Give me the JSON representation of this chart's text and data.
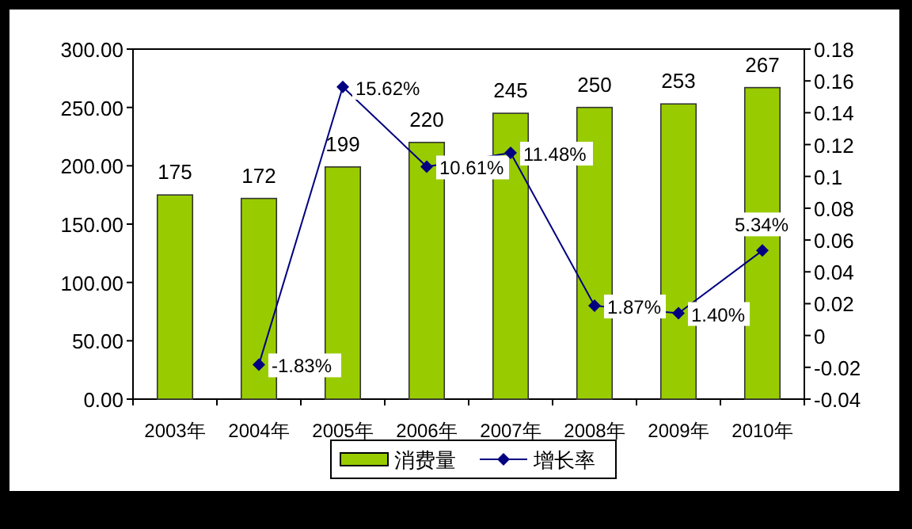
{
  "chart_data": {
    "type": "bar",
    "categories": [
      "2003年",
      "2004年",
      "2005年",
      "2006年",
      "2007年",
      "2008年",
      "2009年",
      "2010年"
    ],
    "series": [
      {
        "name": "消费量",
        "type": "bar",
        "color": "#99cc00",
        "values": [
          175,
          172,
          199,
          220,
          245,
          250,
          253,
          267
        ]
      },
      {
        "name": "增长率",
        "type": "line",
        "axis": "y2",
        "color": "#000080",
        "marker": "diamond",
        "values": [
          null,
          -0.0183,
          0.1562,
          0.1061,
          0.1148,
          0.0187,
          0.014,
          0.0534
        ],
        "value_labels": [
          null,
          "-1.83%",
          "15.62%",
          "10.61%",
          "11.48%",
          "1.87%",
          "1.40%",
          "5.34%"
        ]
      }
    ],
    "data_labels": true,
    "ylim": [
      0,
      300
    ],
    "yticks": [
      {
        "value": 0,
        "label": "0.00"
      },
      {
        "value": 50,
        "label": "50.00"
      },
      {
        "value": 100,
        "label": "100.00"
      },
      {
        "value": 150,
        "label": "150.00"
      },
      {
        "value": 200,
        "label": "200.00"
      },
      {
        "value": 250,
        "label": "250.00"
      },
      {
        "value": 300,
        "label": "300.00"
      }
    ],
    "y2lim": [
      -0.04,
      0.18
    ],
    "y2ticks": [
      -0.04,
      -0.02,
      0,
      0.02,
      0.04,
      0.06,
      0.08,
      0.1,
      0.12,
      0.14,
      0.16,
      0.18
    ],
    "grid": false,
    "legend": "bottom"
  }
}
